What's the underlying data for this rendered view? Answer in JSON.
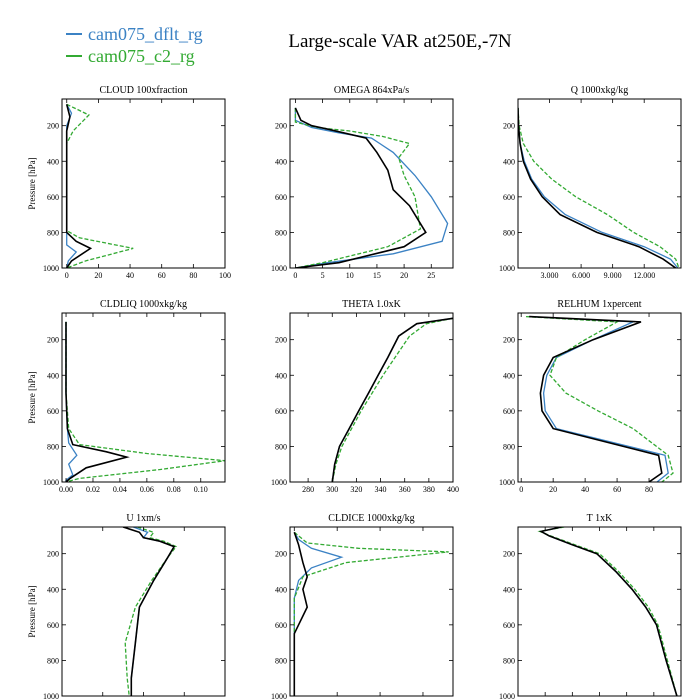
{
  "figure": {
    "title": "Large-scale VAR at250E,-7N",
    "legend": [
      {
        "label": "cam075_dflt_rg",
        "color": "#3b82c4",
        "dash": "none"
      },
      {
        "label": "cam075_c2_rg",
        "color": "#33aa33",
        "dash": "4,2"
      }
    ]
  },
  "chart_data": [
    {
      "type": "line",
      "title": "CLOUD 100xfraction",
      "xlabel": "",
      "ylabel": "Pressure [hPa]",
      "xlim": [
        -3,
        100
      ],
      "ylim": [
        1000,
        50
      ],
      "xticks": [
        0,
        20,
        40,
        60,
        80,
        100
      ],
      "xtick_labels": [
        "0",
        "20",
        "40",
        "60",
        "80",
        "100"
      ],
      "yticks": [
        200,
        400,
        600,
        800,
        1000
      ],
      "series": [
        {
          "name": "cam075_dflt_rg",
          "color": "#3b82c4",
          "x": [
            0,
            3,
            0,
            0,
            0,
            0,
            0,
            0,
            6,
            1,
            0
          ],
          "y": [
            80,
            130,
            200,
            300,
            500,
            700,
            800,
            870,
            910,
            960,
            1000
          ]
        },
        {
          "name": "cam075_c2_rg",
          "color": "#33aa33",
          "dash": true,
          "x": [
            0,
            14,
            4,
            0,
            0,
            0,
            0,
            8,
            42,
            12,
            0
          ],
          "y": [
            80,
            140,
            230,
            300,
            500,
            700,
            790,
            830,
            890,
            960,
            1000
          ]
        },
        {
          "name": "",
          "color": "#000000",
          "x": [
            0,
            2,
            0,
            0,
            0,
            0,
            0,
            6,
            15,
            3,
            0
          ],
          "y": [
            80,
            150,
            230,
            300,
            500,
            700,
            800,
            850,
            890,
            960,
            1000
          ]
        }
      ]
    },
    {
      "type": "line",
      "title": "OMEGA 864xPa/s",
      "xlabel": "",
      "ylabel": "",
      "xlim": [
        -1,
        29
      ],
      "ylim": [
        1000,
        50
      ],
      "xticks": [
        0,
        5,
        10,
        15,
        20,
        25
      ],
      "xtick_labels": [
        "0",
        "5",
        "10",
        "15",
        "20",
        "25"
      ],
      "yticks": [
        200,
        400,
        600,
        800,
        1000
      ],
      "series": [
        {
          "name": "cam075_dflt_rg",
          "color": "#3b82c4",
          "x": [
            0,
            0,
            3,
            8,
            14,
            18,
            22,
            25,
            28,
            27,
            18,
            6,
            0
          ],
          "y": [
            100,
            170,
            210,
            240,
            270,
            350,
            480,
            600,
            750,
            850,
            920,
            970,
            1000
          ]
        },
        {
          "name": "cam075_c2_rg",
          "color": "#33aa33",
          "dash": true,
          "x": [
            0,
            0,
            4,
            10,
            16,
            21,
            19,
            20,
            22,
            23,
            17,
            5,
            0
          ],
          "y": [
            100,
            180,
            210,
            230,
            260,
            300,
            380,
            480,
            600,
            780,
            880,
            970,
            1000
          ]
        },
        {
          "name": "",
          "color": "#000000",
          "x": [
            0,
            1,
            3,
            6,
            13,
            15,
            17,
            18,
            21,
            24,
            20,
            8,
            0
          ],
          "y": [
            100,
            170,
            200,
            220,
            270,
            350,
            450,
            560,
            650,
            800,
            880,
            970,
            1000
          ]
        }
      ]
    },
    {
      "type": "line",
      "title": "Q 1000xkg/kg",
      "xlabel": "",
      "ylabel": "",
      "xlim": [
        0,
        15.5
      ],
      "ylim": [
        1000,
        50
      ],
      "xticks": [
        3,
        6,
        9,
        12
      ],
      "xtick_labels": [
        "3.000",
        "6.000",
        "9.000",
        "12.000"
      ],
      "yticks": [
        200,
        400,
        600,
        800,
        1000
      ],
      "series": [
        {
          "name": "cam075_dflt_rg",
          "color": "#3b82c4",
          "x": [
            0,
            0.05,
            0.2,
            0.6,
            1.3,
            2.5,
            4.5,
            8,
            12,
            14.5,
            15.2
          ],
          "y": [
            100,
            200,
            300,
            400,
            500,
            600,
            700,
            800,
            880,
            950,
            1000
          ]
        },
        {
          "name": "cam075_c2_rg",
          "color": "#33aa33",
          "dash": true,
          "x": [
            0,
            0.1,
            0.5,
            1.5,
            3.2,
            5.5,
            8.5,
            11,
            13.5,
            15,
            15.3
          ],
          "y": [
            100,
            200,
            300,
            400,
            500,
            600,
            700,
            800,
            880,
            950,
            1000
          ]
        },
        {
          "name": "",
          "color": "#000000",
          "x": [
            0,
            0.05,
            0.2,
            0.5,
            1.2,
            2.3,
            4,
            7.5,
            11.5,
            13.8,
            15
          ],
          "y": [
            100,
            200,
            300,
            400,
            500,
            600,
            700,
            800,
            880,
            950,
            1000
          ]
        }
      ]
    },
    {
      "type": "line",
      "title": "CLDLIQ 1000xkg/kg",
      "xlabel": "",
      "ylabel": "Pressure [hPa]",
      "xlim": [
        -0.003,
        0.118
      ],
      "ylim": [
        1000,
        50
      ],
      "xticks": [
        0,
        0.02,
        0.04,
        0.06,
        0.08,
        0.1
      ],
      "xtick_labels": [
        "0.00",
        "0.02",
        "0.04",
        "0.06",
        "0.08",
        "0.10"
      ],
      "yticks": [
        200,
        400,
        600,
        800,
        1000
      ],
      "series": [
        {
          "name": "cam075_dflt_rg",
          "color": "#3b82c4",
          "x": [
            0,
            0,
            0,
            0.001,
            0.002,
            0.008,
            0.002,
            0.005,
            0,
            0
          ],
          "y": [
            100,
            300,
            500,
            700,
            780,
            850,
            900,
            960,
            990,
            1000
          ]
        },
        {
          "name": "cam075_c2_rg",
          "color": "#33aa33",
          "dash": true,
          "x": [
            0,
            0,
            0,
            0.002,
            0.01,
            0.06,
            0.118,
            0.07,
            0.01,
            0
          ],
          "y": [
            100,
            300,
            500,
            700,
            790,
            840,
            880,
            930,
            980,
            1000
          ]
        },
        {
          "name": "",
          "color": "#000000",
          "x": [
            0,
            0,
            0,
            0.001,
            0.005,
            0.03,
            0.045,
            0.015,
            0.003,
            0
          ],
          "y": [
            100,
            300,
            500,
            700,
            790,
            830,
            860,
            920,
            980,
            1000
          ]
        }
      ]
    },
    {
      "type": "line",
      "title": "THETA 1.0xK",
      "xlabel": "",
      "ylabel": "",
      "xlim": [
        265,
        400
      ],
      "ylim": [
        1000,
        50
      ],
      "xticks": [
        280,
        300,
        320,
        340,
        360,
        380,
        400
      ],
      "xtick_labels": [
        "280",
        "300",
        "320",
        "340",
        "360",
        "380",
        "400"
      ],
      "yticks": [
        200,
        400,
        600,
        800,
        1000
      ],
      "series": [
        {
          "name": "cam075_dflt_rg",
          "color": "#3b82c4",
          "x": [
            400,
            370,
            355,
            346,
            338,
            330,
            322,
            314,
            306,
            302,
            300
          ],
          "y": [
            80,
            110,
            180,
            300,
            400,
            500,
            600,
            700,
            800,
            900,
            1000
          ]
        },
        {
          "name": "cam075_c2_rg",
          "color": "#33aa33",
          "dash": true,
          "x": [
            400,
            378,
            364,
            352,
            342,
            333,
            324,
            316,
            308,
            303,
            300
          ],
          "y": [
            80,
            110,
            180,
            300,
            400,
            500,
            600,
            700,
            800,
            900,
            1000
          ]
        },
        {
          "name": "",
          "color": "#000000",
          "x": [
            400,
            370,
            355,
            346,
            338,
            330,
            322,
            314,
            306,
            302,
            300
          ],
          "y": [
            80,
            110,
            180,
            300,
            400,
            500,
            600,
            700,
            800,
            900,
            1000
          ]
        }
      ]
    },
    {
      "type": "line",
      "title": "RELHUM 1xpercent",
      "xlabel": "",
      "ylabel": "",
      "xlim": [
        -2,
        100
      ],
      "ylim": [
        1000,
        50
      ],
      "xticks": [
        0,
        20,
        40,
        60,
        80
      ],
      "xtick_labels": [
        "0",
        "20",
        "40",
        "60",
        "80"
      ],
      "yticks": [
        200,
        400,
        600,
        800,
        1000
      ],
      "series": [
        {
          "name": "cam075_dflt_rg",
          "color": "#3b82c4",
          "x": [
            5,
            70,
            45,
            22,
            16,
            14,
            15,
            22,
            90,
            92,
            85
          ],
          "y": [
            70,
            100,
            200,
            300,
            400,
            500,
            600,
            700,
            850,
            950,
            1000
          ]
        },
        {
          "name": "cam075_c2_rg",
          "color": "#33aa33",
          "dash": true,
          "x": [
            3,
            60,
            40,
            22,
            18,
            28,
            48,
            70,
            92,
            95,
            88
          ],
          "y": [
            70,
            100,
            200,
            300,
            400,
            500,
            600,
            700,
            850,
            950,
            1000
          ]
        },
        {
          "name": "",
          "color": "#000000",
          "x": [
            5,
            75,
            45,
            20,
            14,
            12,
            13,
            20,
            86,
            88,
            80
          ],
          "y": [
            70,
            100,
            200,
            300,
            400,
            500,
            600,
            700,
            850,
            950,
            1000
          ]
        }
      ]
    },
    {
      "type": "line",
      "title": "U 1xm/s",
      "xlabel": "",
      "ylabel": "Pressure [hPa]",
      "xlim": [
        -40,
        40
      ],
      "ylim": [
        1000,
        50
      ],
      "xticks": [
        -40,
        -20,
        0,
        20,
        40
      ],
      "xtick_labels": [
        "-40",
        "-20",
        "0",
        "20",
        "40"
      ],
      "yticks": [
        200,
        400,
        600,
        800,
        1000
      ],
      "series": [
        {
          "name": "cam075_dflt_rg",
          "color": "#3b82c4",
          "x": [
            -5,
            2,
            0,
            8,
            15,
            12,
            5,
            -2,
            -4,
            -6,
            -6
          ],
          "y": [
            50,
            80,
            110,
            130,
            160,
            220,
            350,
            500,
            700,
            900,
            1000
          ]
        },
        {
          "name": "cam075_c2_rg",
          "color": "#33aa33",
          "dash": true,
          "x": [
            -3,
            5,
            3,
            10,
            16,
            12,
            4,
            -4,
            -9,
            -8,
            -7
          ],
          "y": [
            50,
            80,
            110,
            130,
            160,
            220,
            350,
            500,
            700,
            900,
            1000
          ]
        },
        {
          "name": "",
          "color": "#000000",
          "x": [
            -10,
            -2,
            0,
            8,
            15,
            12,
            5,
            -2,
            -4,
            -6,
            -6
          ],
          "y": [
            50,
            80,
            110,
            130,
            160,
            220,
            350,
            500,
            700,
            900,
            1000
          ]
        }
      ]
    },
    {
      "type": "line",
      "title": "CLDICE 1000xkg/kg",
      "xlabel": "",
      "ylabel": "",
      "xlim": [
        -0.0001,
        0.0037
      ],
      "ylim": [
        1000,
        50
      ],
      "xticks": [
        0,
        0.001,
        0.002,
        0.003
      ],
      "xtick_labels": [
        "0.0000",
        "0.0010",
        "0.0020",
        "0.0030"
      ],
      "yticks": [
        200,
        400,
        600,
        800,
        1000
      ],
      "series": [
        {
          "name": "cam075_dflt_rg",
          "color": "#3b82c4",
          "x": [
            0,
            0.0001,
            0.0004,
            0.0011,
            0.0004,
            0.0001,
            0,
            0
          ],
          "y": [
            80,
            120,
            170,
            220,
            280,
            350,
            450,
            1000
          ]
        },
        {
          "name": "cam075_c2_rg",
          "color": "#33aa33",
          "dash": true,
          "x": [
            0,
            0.0003,
            0.0015,
            0.0036,
            0.0012,
            0.0002,
            0,
            0
          ],
          "y": [
            80,
            140,
            170,
            190,
            250,
            330,
            450,
            1000
          ]
        },
        {
          "name": "",
          "color": "#000000",
          "x": [
            0,
            0.0001,
            0.0002,
            0.0003,
            0.0002,
            0.0003,
            0.0001,
            0,
            0
          ],
          "y": [
            80,
            150,
            250,
            330,
            400,
            500,
            600,
            650,
            1000
          ]
        }
      ]
    },
    {
      "type": "line",
      "title": "T 1xK",
      "xlabel": "",
      "ylabel": "",
      "xlim": [
        180,
        300
      ],
      "ylim": [
        1000,
        50
      ],
      "xticks": [
        180,
        200,
        220,
        240,
        260,
        280,
        300
      ],
      "xtick_labels": [
        "180",
        "200",
        "220",
        "240",
        "260",
        "280",
        "300"
      ],
      "yticks": [
        200,
        400,
        600,
        800,
        1000
      ],
      "series": [
        {
          "name": "cam075_dflt_rg",
          "color": "#3b82c4",
          "x": [
            212,
            197,
            203,
            220,
            238,
            252,
            264,
            274,
            282,
            289,
            297
          ],
          "y": [
            50,
            75,
            100,
            150,
            200,
            300,
            400,
            500,
            600,
            800,
            1000
          ]
        },
        {
          "name": "cam075_c2_rg",
          "color": "#33aa33",
          "dash": true,
          "x": [
            214,
            196,
            204,
            222,
            240,
            254,
            266,
            276,
            283,
            290,
            297
          ],
          "y": [
            50,
            75,
            100,
            150,
            200,
            300,
            400,
            500,
            600,
            800,
            1000
          ]
        },
        {
          "name": "",
          "color": "#000000",
          "x": [
            212,
            197,
            203,
            220,
            238,
            252,
            264,
            274,
            282,
            289,
            297
          ],
          "y": [
            50,
            75,
            100,
            150,
            200,
            300,
            400,
            500,
            600,
            800,
            1000
          ]
        }
      ]
    }
  ]
}
